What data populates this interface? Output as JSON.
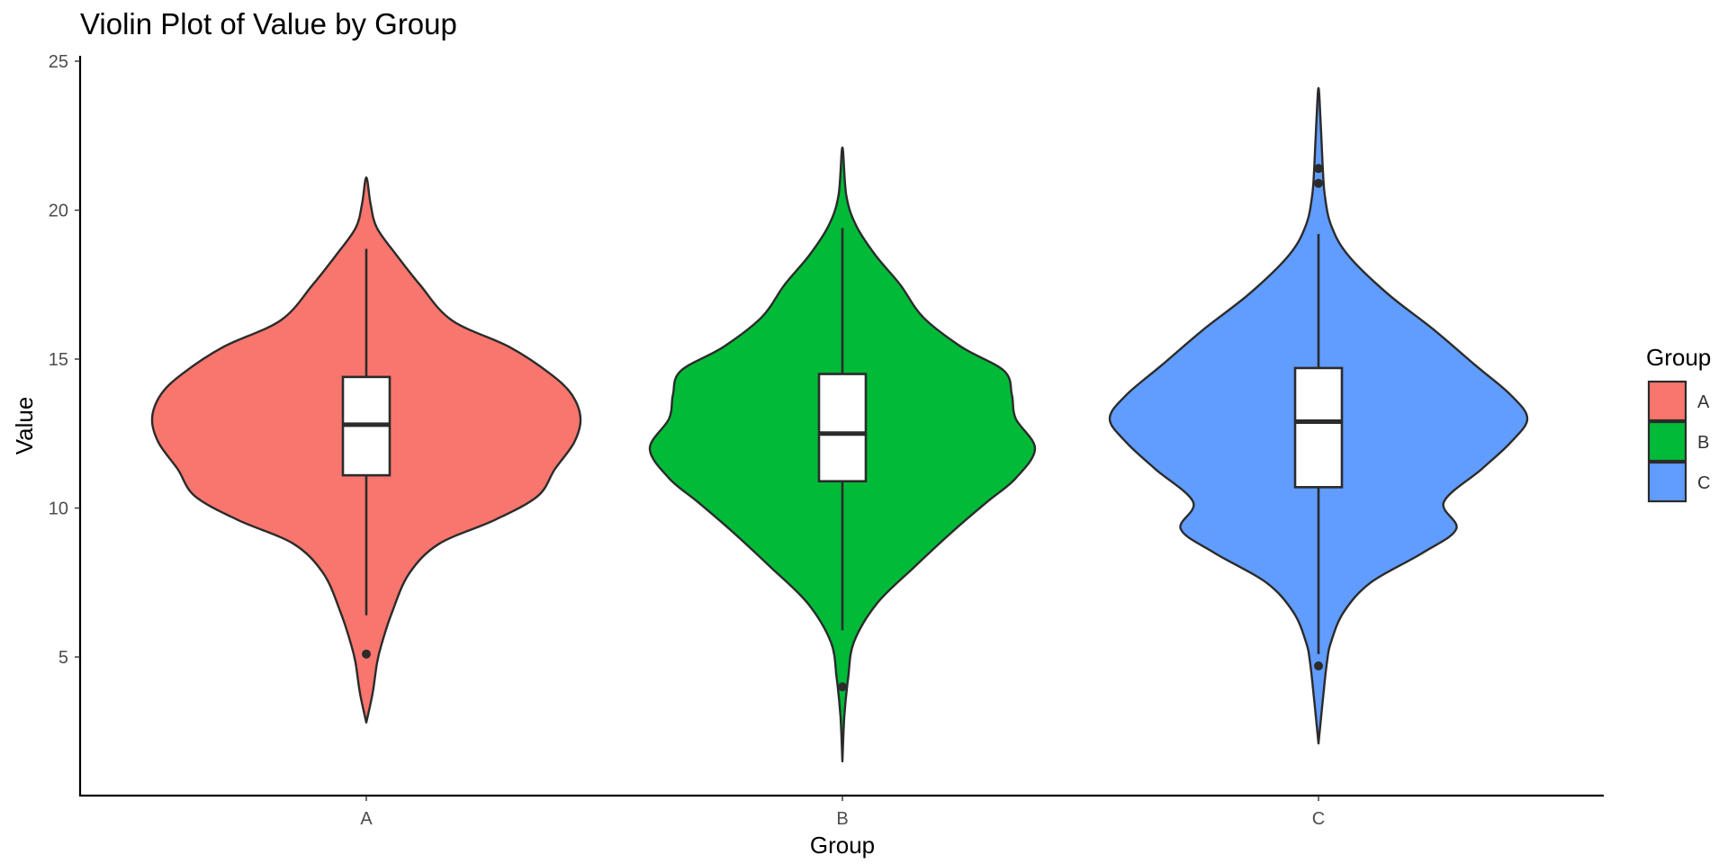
{
  "chart_data": {
    "type": "violin",
    "title": "Violin Plot of Value by Group",
    "xlabel": "Group",
    "ylabel": "Value",
    "ylim": [
      0.4,
      25.3
    ],
    "y_ticks": [
      5,
      10,
      15,
      20,
      25
    ],
    "categories": [
      "A",
      "B",
      "C"
    ],
    "grid": false,
    "legend": {
      "title": "Group",
      "position": "right",
      "entries": [
        "A",
        "B",
        "C"
      ]
    },
    "series": [
      {
        "name": "A",
        "color": "#F8766D",
        "box": {
          "q1": 11.1,
          "median": 12.8,
          "q3": 14.4,
          "whisker_low": 6.4,
          "whisker_high": 18.7
        },
        "outliers": [
          5.1
        ],
        "range": [
          2.8,
          21.1
        ],
        "density": [
          [
            2.8,
            0.0
          ],
          [
            3.8,
            0.03
          ],
          [
            4.8,
            0.05
          ],
          [
            5.4,
            0.07
          ],
          [
            6.5,
            0.12
          ],
          [
            7.8,
            0.2
          ],
          [
            8.8,
            0.34
          ],
          [
            9.6,
            0.6
          ],
          [
            10.4,
            0.8
          ],
          [
            11.3,
            0.88
          ],
          [
            12.2,
            0.97
          ],
          [
            13.0,
            1.0
          ],
          [
            13.8,
            0.96
          ],
          [
            14.5,
            0.86
          ],
          [
            15.4,
            0.67
          ],
          [
            16.3,
            0.4
          ],
          [
            17.5,
            0.25
          ],
          [
            18.5,
            0.14
          ],
          [
            19.4,
            0.05
          ],
          [
            20.2,
            0.02
          ],
          [
            21.1,
            0.0
          ]
        ]
      },
      {
        "name": "B",
        "color": "#00BA38",
        "box": {
          "q1": 10.9,
          "median": 12.5,
          "q3": 14.5,
          "whisker_low": 5.9,
          "whisker_high": 19.4
        },
        "outliers": [
          4.0
        ],
        "range": [
          1.5,
          22.1
        ],
        "density": [
          [
            1.5,
            0.0
          ],
          [
            3.0,
            0.01
          ],
          [
            4.3,
            0.03
          ],
          [
            5.5,
            0.06
          ],
          [
            6.8,
            0.18
          ],
          [
            8.0,
            0.37
          ],
          [
            9.2,
            0.57
          ],
          [
            10.2,
            0.75
          ],
          [
            11.0,
            0.9
          ],
          [
            12.0,
            1.0
          ],
          [
            13.0,
            0.9
          ],
          [
            13.8,
            0.88
          ],
          [
            14.6,
            0.84
          ],
          [
            15.4,
            0.62
          ],
          [
            16.4,
            0.42
          ],
          [
            17.5,
            0.3
          ],
          [
            18.5,
            0.17
          ],
          [
            19.5,
            0.07
          ],
          [
            20.5,
            0.02
          ],
          [
            22.1,
            0.0
          ]
        ]
      },
      {
        "name": "C",
        "color": "#619CFF",
        "box": {
          "q1": 10.7,
          "median": 12.9,
          "q3": 14.7,
          "whisker_low": 5.1,
          "whisker_high": 19.2
        },
        "outliers": [
          4.7,
          20.9,
          21.4
        ],
        "range": [
          2.1,
          24.1
        ],
        "density": [
          [
            2.1,
            0.0
          ],
          [
            3.5,
            0.02
          ],
          [
            4.8,
            0.04
          ],
          [
            5.5,
            0.06
          ],
          [
            6.5,
            0.12
          ],
          [
            7.5,
            0.25
          ],
          [
            8.5,
            0.5
          ],
          [
            9.3,
            0.66
          ],
          [
            10.2,
            0.6
          ],
          [
            11.3,
            0.78
          ],
          [
            12.2,
            0.92
          ],
          [
            13.0,
            1.0
          ],
          [
            13.8,
            0.92
          ],
          [
            14.8,
            0.75
          ],
          [
            16.0,
            0.55
          ],
          [
            17.2,
            0.33
          ],
          [
            18.5,
            0.14
          ],
          [
            19.5,
            0.06
          ],
          [
            20.5,
            0.03
          ],
          [
            21.5,
            0.02
          ],
          [
            23.0,
            0.01
          ],
          [
            24.1,
            0.0
          ]
        ]
      }
    ]
  }
}
